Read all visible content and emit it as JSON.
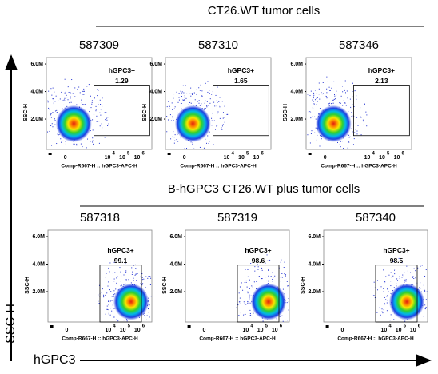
{
  "figure": {
    "y_axis_label": "SSC-H",
    "x_axis_label": "hGPC3"
  },
  "panel_axes": {
    "x_label": "Comp-R667-H :: hGPC3-APC-H",
    "y_label": "SSC-H",
    "yticks": [
      "6.0M",
      "4.0M",
      "2.0M"
    ],
    "xticks": [
      {
        "base": "0"
      },
      {
        "base": "10",
        "sup": "4"
      },
      {
        "base": "10",
        "sup": "5"
      },
      {
        "base": "10",
        "sup": "6"
      }
    ]
  },
  "groups": [
    {
      "title": "CT26.WT tumor cells",
      "panels": [
        {
          "sample": "587309",
          "gate_label": "hGPC3+",
          "gate_value": 1.29
        },
        {
          "sample": "587310",
          "gate_label": "hGPC3+",
          "gate_value": 1.65
        },
        {
          "sample": "587346",
          "gate_label": "hGPC3+",
          "gate_value": 2.13
        }
      ]
    },
    {
      "title": "B-hGPC3 CT26.WT plus tumor cells",
      "panels": [
        {
          "sample": "587318",
          "gate_label": "hGPC3+",
          "gate_value": 99.1
        },
        {
          "sample": "587319",
          "gate_label": "hGPC3+",
          "gate_value": 98.6
        },
        {
          "sample": "587340",
          "gate_label": "hGPC3+",
          "gate_value": 98.5
        }
      ]
    }
  ]
}
